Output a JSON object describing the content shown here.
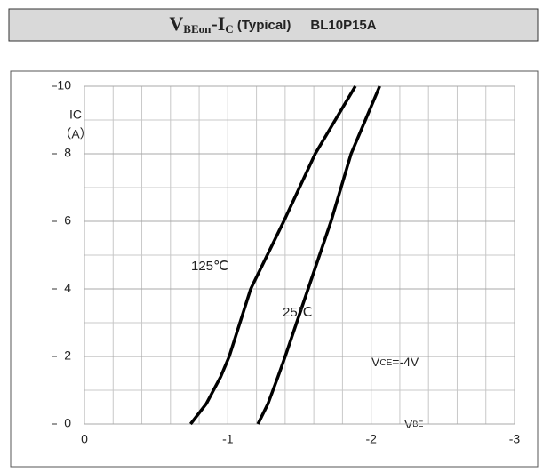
{
  "header": {
    "title_parts": [
      "V",
      "BEon",
      "-I",
      "C",
      " (Typical)",
      "BL10P15A"
    ]
  },
  "chart_data": {
    "type": "line",
    "xlim": [
      0,
      -3
    ],
    "xticks": [
      0,
      -1,
      -2,
      -3
    ],
    "ylim": [
      0,
      10
    ],
    "yticks": [
      0,
      2,
      4,
      6,
      8,
      10
    ],
    "grid": true,
    "x_label": {
      "main": "V",
      "sub": "BE"
    },
    "y_label": {
      "main": "IC",
      "unit": "（A）"
    },
    "annotation": {
      "main": "V",
      "sub": "CE",
      "rest": "=-4V"
    },
    "series": [
      {
        "name": "125℃",
        "color": "#000000",
        "x": [
          -0.74,
          -0.85,
          -0.95,
          -1.01,
          -1.16,
          -1.39,
          -1.61,
          -1.89
        ],
        "values": [
          0,
          0.6,
          1.4,
          2,
          4,
          6,
          8,
          10
        ]
      },
      {
        "name": "25℃",
        "color": "#000000",
        "x": [
          -1.21,
          -1.28,
          -1.35,
          -1.4,
          -1.56,
          -1.72,
          -1.86,
          -2.06
        ],
        "values": [
          0,
          0.6,
          1.4,
          2,
          4,
          6,
          8,
          10
        ]
      }
    ]
  }
}
